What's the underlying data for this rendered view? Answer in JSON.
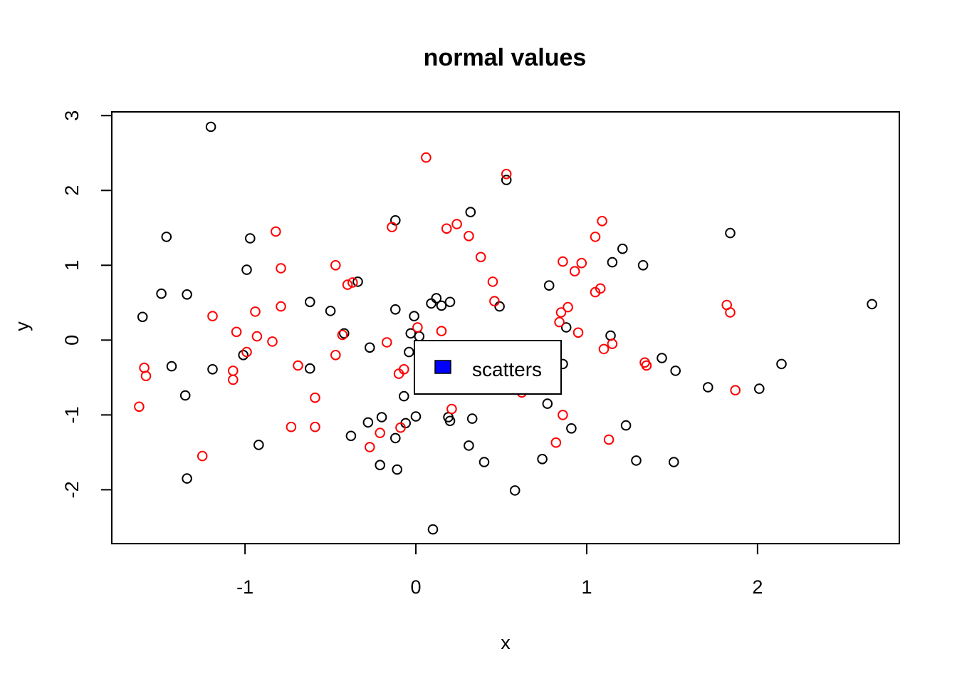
{
  "chart_data": {
    "type": "scatter",
    "title": "normal values",
    "xlabel": "x",
    "ylabel": "y",
    "xlim": [
      -1.78,
      2.83
    ],
    "ylim": [
      -2.72,
      3.05
    ],
    "x_ticks": [
      -1,
      0,
      1,
      2
    ],
    "y_ticks": [
      -2,
      -1,
      0,
      1,
      2,
      3
    ],
    "legend": {
      "position": "center",
      "label": "scatters",
      "fill": "#0000ff"
    },
    "grid": false,
    "series": [
      {
        "color": "#000000",
        "marker": "open-circle",
        "points": [
          [
            -1.2,
            2.85
          ],
          [
            -1.6,
            0.31
          ],
          [
            -1.46,
            1.38
          ],
          [
            -1.49,
            0.62
          ],
          [
            -1.34,
            0.61
          ],
          [
            -1.43,
            -0.35
          ],
          [
            -1.35,
            -0.74
          ],
          [
            -1.34,
            -1.85
          ],
          [
            -1.19,
            -0.39
          ],
          [
            -0.99,
            0.94
          ],
          [
            -0.97,
            1.36
          ],
          [
            -1.01,
            -0.2
          ],
          [
            -0.92,
            -1.4
          ],
          [
            -0.62,
            0.51
          ],
          [
            -0.62,
            -0.38
          ],
          [
            -0.5,
            0.39
          ],
          [
            -0.42,
            0.09
          ],
          [
            -0.38,
            -1.28
          ],
          [
            -0.34,
            0.78
          ],
          [
            -0.27,
            -0.1
          ],
          [
            -0.28,
            -1.1
          ],
          [
            -0.2,
            -1.03
          ],
          [
            -0.21,
            -1.67
          ],
          [
            -0.12,
            1.6
          ],
          [
            -0.12,
            0.41
          ],
          [
            -0.12,
            -1.31
          ],
          [
            -0.11,
            -1.73
          ],
          [
            -0.07,
            -0.75
          ],
          [
            -0.06,
            -1.11
          ],
          [
            -0.04,
            -0.16
          ],
          [
            -0.03,
            0.09
          ],
          [
            -0.01,
            0.32
          ],
          [
            0.0,
            -1.02
          ],
          [
            0.02,
            0.05
          ],
          [
            0.09,
            0.49
          ],
          [
            0.12,
            0.56
          ],
          [
            0.15,
            0.46
          ],
          [
            0.2,
            0.51
          ],
          [
            0.19,
            -1.03
          ],
          [
            0.2,
            -1.08
          ],
          [
            0.32,
            1.71
          ],
          [
            0.33,
            -1.05
          ],
          [
            0.31,
            -1.41
          ],
          [
            0.4,
            -1.63
          ],
          [
            0.49,
            0.45
          ],
          [
            0.53,
            2.14
          ],
          [
            0.58,
            -2.01
          ],
          [
            0.74,
            -1.59
          ],
          [
            0.78,
            0.73
          ],
          [
            0.77,
            -0.85
          ],
          [
            0.86,
            -0.32
          ],
          [
            0.88,
            0.17
          ],
          [
            0.91,
            -1.18
          ],
          [
            1.14,
            0.06
          ],
          [
            1.15,
            1.04
          ],
          [
            1.21,
            1.22
          ],
          [
            1.23,
            -1.14
          ],
          [
            1.29,
            -1.61
          ],
          [
            1.33,
            1.0
          ],
          [
            1.44,
            -0.24
          ],
          [
            1.52,
            -0.41
          ],
          [
            1.51,
            -1.63
          ],
          [
            1.71,
            -0.63
          ],
          [
            1.84,
            1.43
          ],
          [
            2.01,
            -0.65
          ],
          [
            2.14,
            -0.32
          ],
          [
            2.67,
            0.48
          ],
          [
            0.1,
            -2.53
          ]
        ]
      },
      {
        "color": "#ff0000",
        "marker": "open-circle",
        "points": [
          [
            -1.62,
            -0.89
          ],
          [
            -1.59,
            -0.37
          ],
          [
            -1.58,
            -0.48
          ],
          [
            -1.25,
            -1.55
          ],
          [
            -1.19,
            0.32
          ],
          [
            -1.05,
            0.11
          ],
          [
            -1.07,
            -0.41
          ],
          [
            -1.07,
            -0.53
          ],
          [
            -0.99,
            -0.16
          ],
          [
            -0.94,
            0.38
          ],
          [
            -0.93,
            0.05
          ],
          [
            -0.82,
            1.45
          ],
          [
            -0.79,
            0.96
          ],
          [
            -0.79,
            0.45
          ],
          [
            -0.84,
            -0.02
          ],
          [
            -0.73,
            -1.16
          ],
          [
            -0.69,
            -0.34
          ],
          [
            -0.59,
            -0.77
          ],
          [
            -0.59,
            -1.16
          ],
          [
            -0.47,
            1.0
          ],
          [
            -0.47,
            -0.2
          ],
          [
            -0.43,
            0.07
          ],
          [
            -0.4,
            0.74
          ],
          [
            -0.37,
            0.77
          ],
          [
            -0.27,
            -1.43
          ],
          [
            -0.21,
            -1.24
          ],
          [
            -0.17,
            -0.03
          ],
          [
            -0.14,
            1.51
          ],
          [
            -0.1,
            -0.45
          ],
          [
            -0.09,
            -1.17
          ],
          [
            -0.07,
            -0.39
          ],
          [
            0.01,
            0.17
          ],
          [
            0.06,
            2.44
          ],
          [
            0.15,
            0.12
          ],
          [
            0.18,
            1.49
          ],
          [
            0.24,
            1.55
          ],
          [
            0.21,
            -0.92
          ],
          [
            0.31,
            1.39
          ],
          [
            0.38,
            1.11
          ],
          [
            0.45,
            0.78
          ],
          [
            0.46,
            0.52
          ],
          [
            0.53,
            2.22
          ],
          [
            0.62,
            -0.7
          ],
          [
            0.82,
            -1.37
          ],
          [
            0.84,
            0.24
          ],
          [
            0.85,
            0.37
          ],
          [
            0.86,
            1.05
          ],
          [
            0.89,
            0.44
          ],
          [
            0.86,
            -1.0
          ],
          [
            0.93,
            0.92
          ],
          [
            0.95,
            0.1
          ],
          [
            0.97,
            1.03
          ],
          [
            1.05,
            0.64
          ],
          [
            1.05,
            1.38
          ],
          [
            1.08,
            0.69
          ],
          [
            1.09,
            1.59
          ],
          [
            1.1,
            -0.12
          ],
          [
            1.13,
            -1.33
          ],
          [
            1.15,
            -0.05
          ],
          [
            1.34,
            -0.3
          ],
          [
            1.35,
            -0.34
          ],
          [
            1.82,
            0.47
          ],
          [
            1.84,
            0.37
          ],
          [
            1.87,
            -0.67
          ]
        ]
      }
    ]
  }
}
